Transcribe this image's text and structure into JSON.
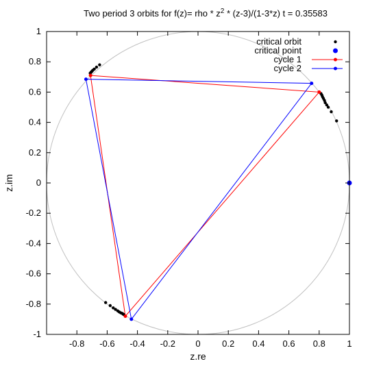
{
  "chart_data": {
    "type": "scatter",
    "title_pre": "Two period 3 orbits for f(z)= rho * z",
    "title_sup": "2",
    "title_post": " * (z-3)/(1-3*z)  t = 0.35583",
    "xlabel": "z.re",
    "ylabel": "z.im",
    "xlim": [
      -1,
      1
    ],
    "ylim": [
      -1,
      1
    ],
    "xticks": [
      -0.8,
      -0.6,
      -0.4,
      -0.2,
      0,
      0.2,
      0.4,
      0.6,
      0.8,
      1
    ],
    "xtick_labels": [
      "-0.8",
      "-0.6",
      "-0.4",
      "-0.2",
      "0",
      "0.2",
      "0.4",
      "0.6",
      "0.8",
      "1"
    ],
    "yticks": [
      -1,
      -0.8,
      -0.6,
      -0.4,
      -0.2,
      0,
      0.2,
      0.4,
      0.6,
      0.8,
      1
    ],
    "ytick_labels": [
      "-1",
      "-0.8",
      "-0.6",
      "-0.4",
      "-0.2",
      "0",
      "0.2",
      "0.4",
      "0.6",
      "0.8",
      "1"
    ],
    "grid": false,
    "legend_position": "top-right",
    "unit_circle": {
      "center": [
        0,
        0
      ],
      "radius": 1,
      "color": "#c0c0c0"
    },
    "series": [
      {
        "name": "critical orbit",
        "kind": "points",
        "color": "#000000",
        "points": [
          [
            -0.65,
            0.78
          ],
          [
            -0.67,
            0.765
          ],
          [
            -0.685,
            0.752
          ],
          [
            -0.695,
            0.744
          ],
          [
            -0.7,
            0.738
          ],
          [
            -0.705,
            0.733
          ],
          [
            -0.708,
            0.729
          ],
          [
            -0.712,
            0.725
          ],
          [
            0.915,
            0.41
          ],
          [
            0.88,
            0.47
          ],
          [
            0.86,
            0.5
          ],
          [
            0.85,
            0.515
          ],
          [
            0.84,
            0.53
          ],
          [
            0.835,
            0.545
          ],
          [
            0.828,
            0.558
          ],
          [
            0.822,
            0.57
          ],
          [
            0.818,
            0.58
          ],
          [
            0.812,
            0.59
          ],
          [
            -0.61,
            -0.79
          ],
          [
            -0.58,
            -0.81
          ],
          [
            -0.56,
            -0.825
          ],
          [
            -0.545,
            -0.835
          ],
          [
            -0.53,
            -0.845
          ],
          [
            -0.52,
            -0.852
          ],
          [
            -0.51,
            -0.858
          ],
          [
            -0.5,
            -0.862
          ],
          [
            -0.495,
            -0.866
          ],
          [
            -0.49,
            -0.869
          ]
        ]
      },
      {
        "name": "critical point",
        "kind": "points",
        "color": "#0000ff",
        "points": [
          [
            1,
            0
          ]
        ]
      },
      {
        "name": "cycle 1",
        "kind": "cycle",
        "color": "#ff0000",
        "points": [
          [
            -0.71,
            0.71
          ],
          [
            0.8,
            0.6
          ],
          [
            -0.48,
            -0.88
          ],
          [
            -0.71,
            0.71
          ]
        ]
      },
      {
        "name": "cycle 2",
        "kind": "cycle",
        "color": "#0000ff",
        "points": [
          [
            -0.74,
            0.685
          ],
          [
            0.75,
            0.658
          ],
          [
            -0.44,
            -0.9
          ],
          [
            -0.74,
            0.685
          ]
        ]
      }
    ]
  }
}
